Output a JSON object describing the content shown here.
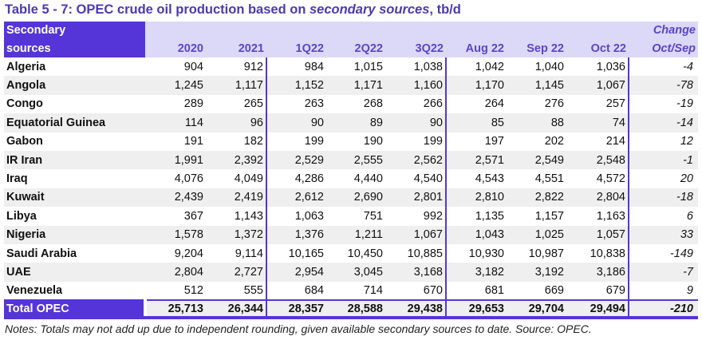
{
  "title": {
    "prefix": "Table 5 - 7: OPEC crude oil production based on ",
    "italic": "secondary sources",
    "suffix": ", tb/d"
  },
  "header": {
    "first_line1": "Secondary",
    "first_line2": "sources",
    "columns": [
      "2020",
      "2021",
      "1Q22",
      "2Q22",
      "3Q22",
      "Aug 22",
      "Sep 22",
      "Oct 22"
    ],
    "change_line1": "Change",
    "change_line2": "Oct/Sep"
  },
  "rows": [
    {
      "name": "Algeria",
      "values": [
        "904",
        "912",
        "984",
        "1,015",
        "1,038",
        "1,042",
        "1,040",
        "1,036"
      ],
      "change": "-4"
    },
    {
      "name": "Angola",
      "values": [
        "1,245",
        "1,117",
        "1,152",
        "1,171",
        "1,160",
        "1,170",
        "1,145",
        "1,067"
      ],
      "change": "-78"
    },
    {
      "name": "Congo",
      "values": [
        "289",
        "265",
        "263",
        "268",
        "266",
        "264",
        "276",
        "257"
      ],
      "change": "-19"
    },
    {
      "name": "Equatorial Guinea",
      "values": [
        "114",
        "96",
        "90",
        "89",
        "90",
        "85",
        "88",
        "74"
      ],
      "change": "-14"
    },
    {
      "name": "Gabon",
      "values": [
        "191",
        "182",
        "199",
        "190",
        "199",
        "197",
        "202",
        "214"
      ],
      "change": "12"
    },
    {
      "name": "IR Iran",
      "values": [
        "1,991",
        "2,392",
        "2,529",
        "2,555",
        "2,562",
        "2,571",
        "2,549",
        "2,548"
      ],
      "change": "-1"
    },
    {
      "name": "Iraq",
      "values": [
        "4,076",
        "4,049",
        "4,286",
        "4,440",
        "4,540",
        "4,543",
        "4,551",
        "4,572"
      ],
      "change": "20"
    },
    {
      "name": "Kuwait",
      "values": [
        "2,439",
        "2,419",
        "2,612",
        "2,690",
        "2,801",
        "2,810",
        "2,822",
        "2,804"
      ],
      "change": "-18"
    },
    {
      "name": "Libya",
      "values": [
        "367",
        "1,143",
        "1,063",
        "751",
        "992",
        "1,135",
        "1,157",
        "1,163"
      ],
      "change": "6"
    },
    {
      "name": "Nigeria",
      "values": [
        "1,578",
        "1,372",
        "1,376",
        "1,211",
        "1,067",
        "1,043",
        "1,025",
        "1,057"
      ],
      "change": "33"
    },
    {
      "name": "Saudi Arabia",
      "values": [
        "9,204",
        "9,114",
        "10,165",
        "10,450",
        "10,885",
        "10,930",
        "10,987",
        "10,838"
      ],
      "change": "-149"
    },
    {
      "name": "UAE",
      "values": [
        "2,804",
        "2,727",
        "2,954",
        "3,045",
        "3,168",
        "3,182",
        "3,192",
        "3,186"
      ],
      "change": "-7"
    },
    {
      "name": "Venezuela",
      "values": [
        "512",
        "555",
        "684",
        "714",
        "670",
        "681",
        "669",
        "679"
      ],
      "change": "9"
    }
  ],
  "total": {
    "name": "Total  OPEC",
    "values": [
      "25,713",
      "26,344",
      "28,357",
      "28,588",
      "29,438",
      "29,653",
      "29,704",
      "29,494"
    ],
    "change": "-210"
  },
  "notes": "Notes: Totals may not add up due to independent rounding, given available secondary sources to date. Source: OPEC."
}
